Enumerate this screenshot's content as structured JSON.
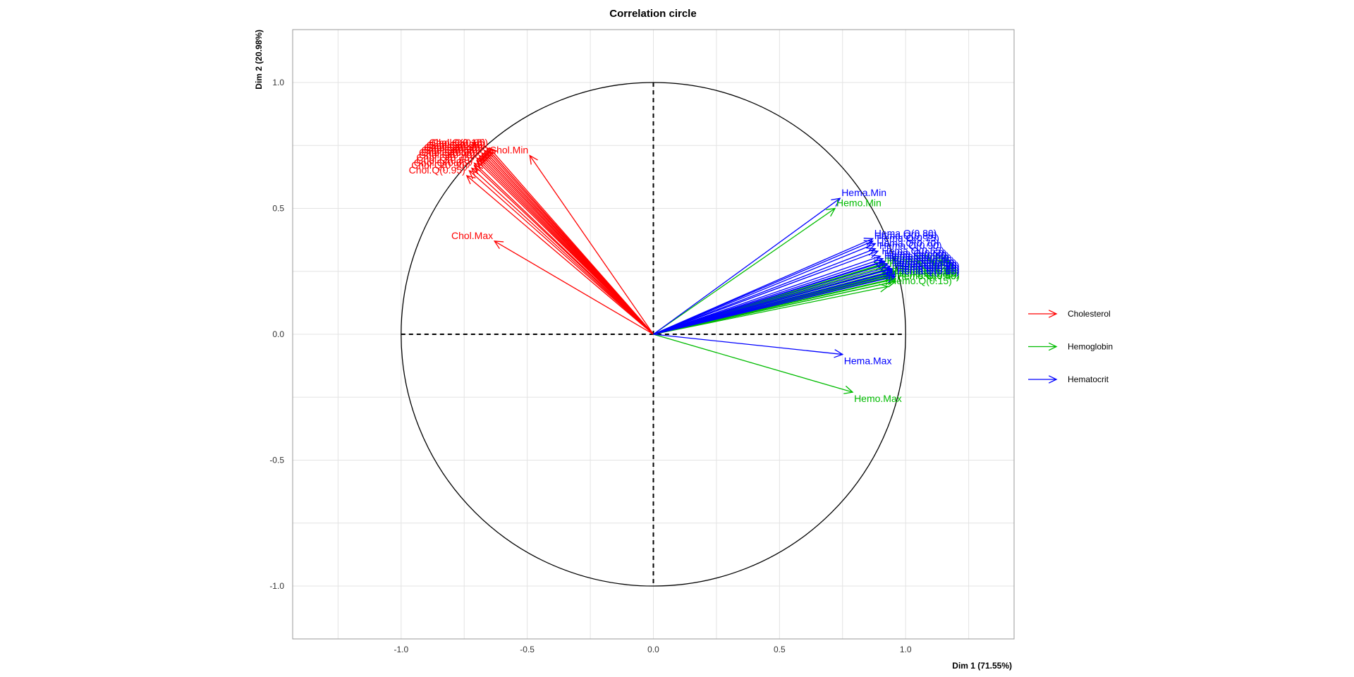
{
  "chart_data": {
    "type": "scatter",
    "subtype": "correlation-circle",
    "title": "Correlation circle",
    "xlabel": "Dim 1 (71.55%)",
    "ylabel": "Dim 2 (20.98%)",
    "xlim": [
      -1.43,
      1.43
    ],
    "ylim": [
      -1.21,
      1.21
    ],
    "xticks": [
      "-1.0",
      "-0.5",
      "0.0",
      "0.5",
      "1.0"
    ],
    "yticks": [
      "-1.0",
      "-0.5",
      "0.0",
      "0.5",
      "1.0"
    ],
    "xtick_values": [
      -1.0,
      -0.5,
      0.0,
      0.5,
      1.0
    ],
    "ytick_values": [
      -1.0,
      -0.5,
      0.0,
      0.5,
      1.0
    ],
    "grid": true,
    "legend_position": "right",
    "series": [
      {
        "name": "Cholesterol",
        "color": "#ff0000",
        "vectors": [
          {
            "label": "Chol.Min",
            "x": -0.49,
            "y": 0.71
          },
          {
            "label": "Chol.Max",
            "x": -0.63,
            "y": 0.37
          },
          {
            "label": "Chol.Q(0.95)",
            "x": -0.74,
            "y": 0.63
          },
          {
            "label": "Chol.Q(0.90)",
            "x": -0.73,
            "y": 0.65
          },
          {
            "label": "Chol.Q(0.85)",
            "x": -0.72,
            "y": 0.66
          },
          {
            "label": "Chol.Q(0.80)",
            "x": -0.71,
            "y": 0.67
          },
          {
            "label": "Chol.Q(0.75)",
            "x": -0.71,
            "y": 0.68
          },
          {
            "label": "Chol.Q(0.70)",
            "x": -0.7,
            "y": 0.69
          },
          {
            "label": "Chol.Q(0.65)",
            "x": -0.7,
            "y": 0.7
          },
          {
            "label": "Chol.Q(0.60)",
            "x": -0.69,
            "y": 0.7
          },
          {
            "label": "Chol.Q(0.55)",
            "x": -0.69,
            "y": 0.71
          },
          {
            "label": "Chol.Q(0.50)",
            "x": -0.68,
            "y": 0.71
          },
          {
            "label": "Chol.Q(0.45)",
            "x": -0.68,
            "y": 0.72
          },
          {
            "label": "Chol.Q(0.40)",
            "x": -0.68,
            "y": 0.72
          },
          {
            "label": "Chol.Q(0.35)",
            "x": -0.67,
            "y": 0.72
          },
          {
            "label": "Chol.Q(0.30)",
            "x": -0.67,
            "y": 0.73
          },
          {
            "label": "Chol.Q(0.25)",
            "x": -0.67,
            "y": 0.73
          },
          {
            "label": "Chol.Q(0.20)",
            "x": -0.66,
            "y": 0.73
          },
          {
            "label": "Chol.Q(0.15)",
            "x": -0.66,
            "y": 0.74
          },
          {
            "label": "Chol.Q(0.10)",
            "x": -0.66,
            "y": 0.74
          },
          {
            "label": "Chol.Q(0.05)",
            "x": -0.65,
            "y": 0.74
          }
        ]
      },
      {
        "name": "Hemoglobin",
        "color": "#00bb00",
        "vectors": [
          {
            "label": "Hemo.Min",
            "x": 0.72,
            "y": 0.5
          },
          {
            "label": "Hemo.Max",
            "x": 0.79,
            "y": -0.23
          },
          {
            "label": "Hemo.Q(0.15)",
            "x": 0.93,
            "y": 0.19
          },
          {
            "label": "Hemo.Q(0.05)",
            "x": 0.92,
            "y": 0.28
          },
          {
            "label": "Hemo.Q(0.10)",
            "x": 0.93,
            "y": 0.26
          },
          {
            "label": "Hemo.Q(0.20)",
            "x": 0.94,
            "y": 0.24
          },
          {
            "label": "Hemo.Q(0.25)",
            "x": 0.94,
            "y": 0.23
          },
          {
            "label": "Hemo.Q(0.30)",
            "x": 0.95,
            "y": 0.23
          },
          {
            "label": "Hemo.Q(0.35)",
            "x": 0.95,
            "y": 0.22
          },
          {
            "label": "Hemo.Q(0.40)",
            "x": 0.95,
            "y": 0.22
          },
          {
            "label": "Hemo.Q(0.45)",
            "x": 0.96,
            "y": 0.21
          },
          {
            "label": "Hemo.Q(0.50)",
            "x": 0.96,
            "y": 0.21
          },
          {
            "label": "Hemo.Q(0.55)",
            "x": 0.96,
            "y": 0.21
          },
          {
            "label": "Hemo.Q(0.60)",
            "x": 0.96,
            "y": 0.22
          },
          {
            "label": "Hemo.Q(0.65)",
            "x": 0.96,
            "y": 0.22
          },
          {
            "label": "Hemo.Q(0.70)",
            "x": 0.95,
            "y": 0.23
          },
          {
            "label": "Hemo.Q(0.75)",
            "x": 0.95,
            "y": 0.24
          },
          {
            "label": "Hemo.Q(0.80)",
            "x": 0.94,
            "y": 0.25
          },
          {
            "label": "Hemo.Q(0.85)",
            "x": 0.93,
            "y": 0.26
          },
          {
            "label": "Hemo.Q(0.90)",
            "x": 0.92,
            "y": 0.27
          },
          {
            "label": "Hemo.Q(0.95)",
            "x": 0.91,
            "y": 0.28
          }
        ]
      },
      {
        "name": "Hematocrit",
        "color": "#0000ff",
        "vectors": [
          {
            "label": "Hema.Min",
            "x": 0.74,
            "y": 0.54
          },
          {
            "label": "Hema.Max",
            "x": 0.75,
            "y": -0.08
          },
          {
            "label": "Hema.Q(0.80)",
            "x": 0.87,
            "y": 0.38
          },
          {
            "label": "Hema.Q(0.85)",
            "x": 0.87,
            "y": 0.37
          },
          {
            "label": "Hema.Q(0.75)",
            "x": 0.88,
            "y": 0.36
          },
          {
            "label": "Hema.Q(0.70)",
            "x": 0.88,
            "y": 0.34
          },
          {
            "label": "Hema.Q(0.90)",
            "x": 0.89,
            "y": 0.33
          },
          {
            "label": "Hema.Q(0.65)",
            "x": 0.9,
            "y": 0.31
          },
          {
            "label": "Hema.Q(0.60)",
            "x": 0.91,
            "y": 0.3
          },
          {
            "label": "Hema.Q(0.95)",
            "x": 0.91,
            "y": 0.29
          },
          {
            "label": "Hema.Q(0.55)",
            "x": 0.92,
            "y": 0.29
          },
          {
            "label": "Hema.Q(0.50)",
            "x": 0.93,
            "y": 0.28
          },
          {
            "label": "Hema.Q(0.45)",
            "x": 0.94,
            "y": 0.27
          },
          {
            "label": "Hema.Q(0.40)",
            "x": 0.94,
            "y": 0.26
          },
          {
            "label": "Hema.Q(0.35)",
            "x": 0.95,
            "y": 0.26
          },
          {
            "label": "Hema.Q(0.30)",
            "x": 0.95,
            "y": 0.25
          },
          {
            "label": "Hema.Q(0.25)",
            "x": 0.96,
            "y": 0.25
          },
          {
            "label": "Hema.Q(0.20)",
            "x": 0.96,
            "y": 0.24
          },
          {
            "label": "Hema.Q(0.15)",
            "x": 0.96,
            "y": 0.24
          },
          {
            "label": "Hema.Q(0.10)",
            "x": 0.96,
            "y": 0.23
          },
          {
            "label": "Hema.Q(0.05)",
            "x": 0.96,
            "y": 0.23
          }
        ]
      }
    ]
  }
}
